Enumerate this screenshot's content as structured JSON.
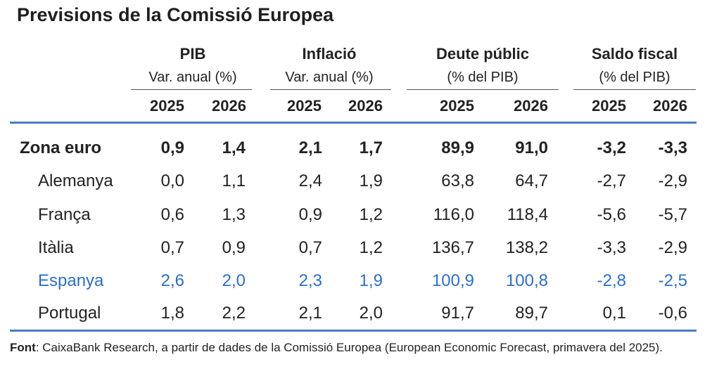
{
  "title": "Previsions de la Comissió Europea",
  "groups": [
    {
      "name": "PIB",
      "sub": "Var. anual (%)"
    },
    {
      "name": "Inflació",
      "sub": "Var. anual (%)"
    },
    {
      "name": "Deute públic",
      "sub": "(% del PIB)"
    },
    {
      "name": "Saldo fiscal",
      "sub": "(% del PIB)"
    }
  ],
  "years": [
    "2025",
    "2026",
    "2025",
    "2026",
    "2025",
    "2026",
    "2025",
    "2026"
  ],
  "rows": [
    {
      "name": "Zona euro",
      "values": [
        "0,9",
        "1,4",
        "2,1",
        "1,7",
        "89,9",
        "91,0",
        "-3,2",
        "-3,3"
      ]
    },
    {
      "name": "Alemanya",
      "values": [
        "0,0",
        "1,1",
        "2,4",
        "1,9",
        "63,8",
        "64,7",
        "-2,7",
        "-2,9"
      ]
    },
    {
      "name": "França",
      "values": [
        "0,6",
        "1,3",
        "0,9",
        "1,2",
        "116,0",
        "118,4",
        "-5,6",
        "-5,7"
      ]
    },
    {
      "name": "Itàlia",
      "values": [
        "0,7",
        "0,9",
        "0,7",
        "1,2",
        "136,7",
        "138,2",
        "-3,3",
        "-2,9"
      ]
    },
    {
      "name": "Espanya",
      "values": [
        "2,6",
        "2,0",
        "2,3",
        "1,9",
        "100,9",
        "100,8",
        "-2,8",
        "-2,5"
      ]
    },
    {
      "name": "Portugal",
      "values": [
        "1,8",
        "2,2",
        "2,1",
        "2,0",
        "91,7",
        "89,7",
        "0,1",
        "-0,6"
      ]
    }
  ],
  "source": {
    "label": "Font",
    "text": ": CaixaBank Research, a partir de dades de la Comissió Europea (European Economic Forecast, primavera del 2025)."
  },
  "colors": {
    "rule": "#4a7fc1",
    "highlight": "#2f6fc0"
  }
}
